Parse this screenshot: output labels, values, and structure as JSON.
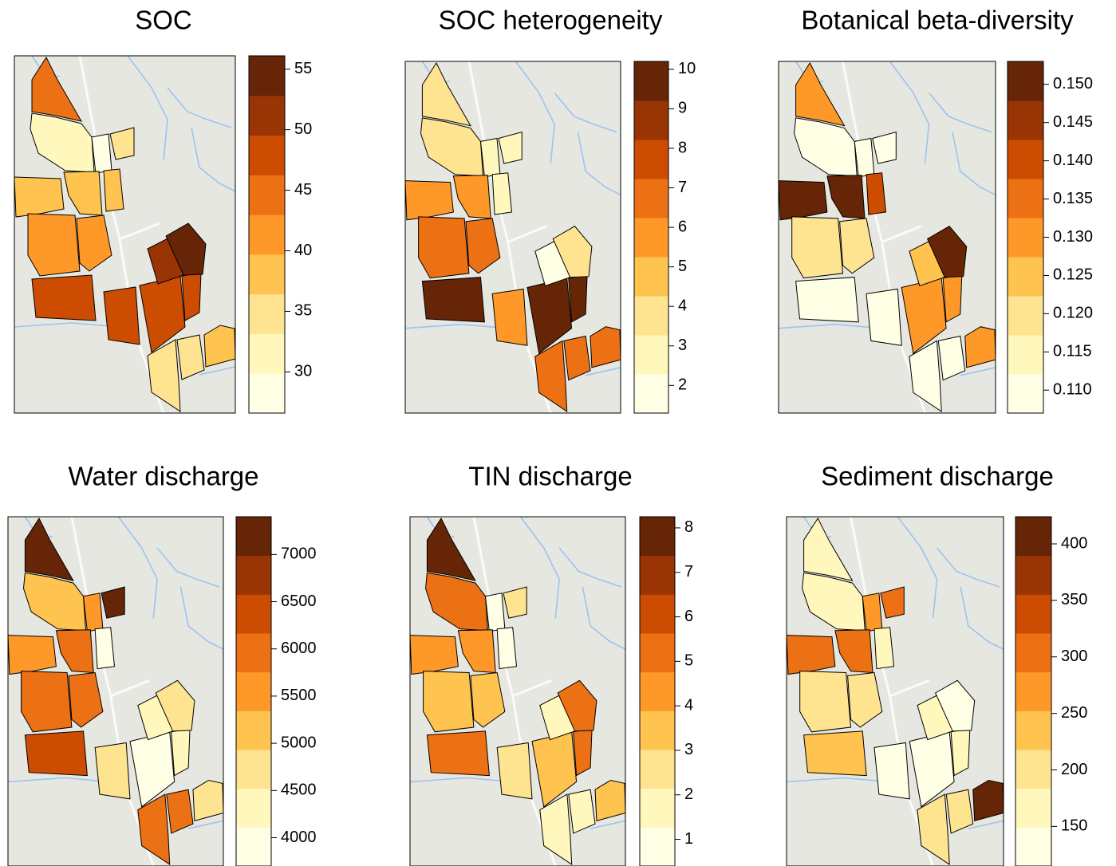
{
  "chart_data": [
    {
      "type": "map",
      "title": "SOC",
      "colors": [
        "#ffffe5",
        "#fff7bc",
        "#fee391",
        "#fec44f",
        "#fe9929",
        "#ec7014",
        "#cc4c02",
        "#993404",
        "#662506"
      ],
      "values": [
        45,
        31,
        28,
        35,
        38,
        38,
        38,
        41,
        42,
        48,
        48,
        48,
        48,
        51,
        55,
        35,
        35,
        38
      ],
      "lim": [
        26.6,
        56.1
      ],
      "ticks": [
        30,
        35,
        40,
        45,
        50,
        55
      ]
    },
    {
      "type": "map",
      "title": "SOC heterogeneity",
      "colors": [
        "#ffffe5",
        "#fff7bc",
        "#fee391",
        "#fec44f",
        "#fe9929",
        "#ec7014",
        "#cc4c02",
        "#993404",
        "#662506"
      ],
      "values": [
        3.7,
        3.7,
        2.8,
        2.8,
        5.7,
        5.7,
        2.8,
        6.7,
        6.7,
        9.7,
        5.7,
        9.7,
        9.7,
        1.8,
        3.7,
        6.7,
        6.7,
        6.7
      ],
      "lim": [
        1.3,
        10.2
      ],
      "ticks": [
        2,
        3,
        4,
        5,
        6,
        7,
        8,
        9,
        10
      ]
    },
    {
      "type": "map",
      "title": "Botanical beta-diversity",
      "colors": [
        "#ffffe5",
        "#fff7bc",
        "#fee391",
        "#fec44f",
        "#fe9929",
        "#ec7014",
        "#cc4c02",
        "#993404",
        "#662506"
      ],
      "values": [
        0.13,
        0.109,
        0.109,
        0.109,
        0.151,
        0.151,
        0.14,
        0.12,
        0.12,
        0.109,
        0.109,
        0.13,
        0.13,
        0.125,
        0.151,
        0.109,
        0.109,
        0.13
      ],
      "lim": [
        0.107,
        0.153
      ],
      "ticks": [
        {
          "value": 0.11,
          "label": "0.110"
        },
        {
          "value": 0.115,
          "label": "0.115"
        },
        {
          "value": 0.12,
          "label": "0.120"
        },
        {
          "value": 0.125,
          "label": "0.125"
        },
        {
          "value": 0.13,
          "label": "0.130"
        },
        {
          "value": 0.135,
          "label": "0.135"
        },
        {
          "value": 0.14,
          "label": "0.140"
        },
        {
          "value": 0.145,
          "label": "0.145"
        },
        {
          "value": 0.15,
          "label": "0.150"
        }
      ]
    },
    {
      "type": "map",
      "title": "Water discharge",
      "colors": [
        "#ffffe5",
        "#fff7bc",
        "#fee391",
        "#fec44f",
        "#fe9929",
        "#ec7014",
        "#cc4c02",
        "#993404",
        "#662506"
      ],
      "values": [
        7200,
        5100,
        5500,
        7200,
        5500,
        5900,
        3900,
        5900,
        5900,
        6400,
        4700,
        3900,
        4300,
        4300,
        4700,
        5900,
        5900,
        4700
      ],
      "lim": [
        3700,
        7400
      ],
      "ticks": [
        4000,
        4500,
        5000,
        5500,
        6000,
        6500,
        7000
      ]
    },
    {
      "type": "map",
      "title": "TIN discharge",
      "colors": [
        "#ffffe5",
        "#fff7bc",
        "#fee391",
        "#fec44f",
        "#fe9929",
        "#ec7014",
        "#cc4c02",
        "#993404",
        "#662506"
      ],
      "values": [
        7.8,
        5.2,
        0.8,
        2.6,
        4.3,
        4.3,
        0.8,
        3.5,
        3.5,
        5.2,
        2.6,
        3.5,
        5.2,
        1.7,
        5.2,
        1.7,
        1.7,
        3.5
      ],
      "lim": [
        0.4,
        8.25
      ],
      "ticks": [
        1,
        2,
        3,
        4,
        5,
        6,
        7,
        8
      ]
    },
    {
      "type": "map",
      "title": "Sediment discharge",
      "colors": [
        "#ffffe5",
        "#fff7bc",
        "#fee391",
        "#fec44f",
        "#fe9929",
        "#ec7014",
        "#cc4c02",
        "#993404",
        "#662506"
      ],
      "values": [
        166,
        166,
        269,
        304,
        304,
        304,
        166,
        201,
        201,
        235,
        132,
        132,
        166,
        166,
        132,
        201,
        201,
        407
      ],
      "lim": [
        115,
        424
      ],
      "ticks": [
        150,
        200,
        250,
        300,
        350,
        400
      ]
    }
  ]
}
